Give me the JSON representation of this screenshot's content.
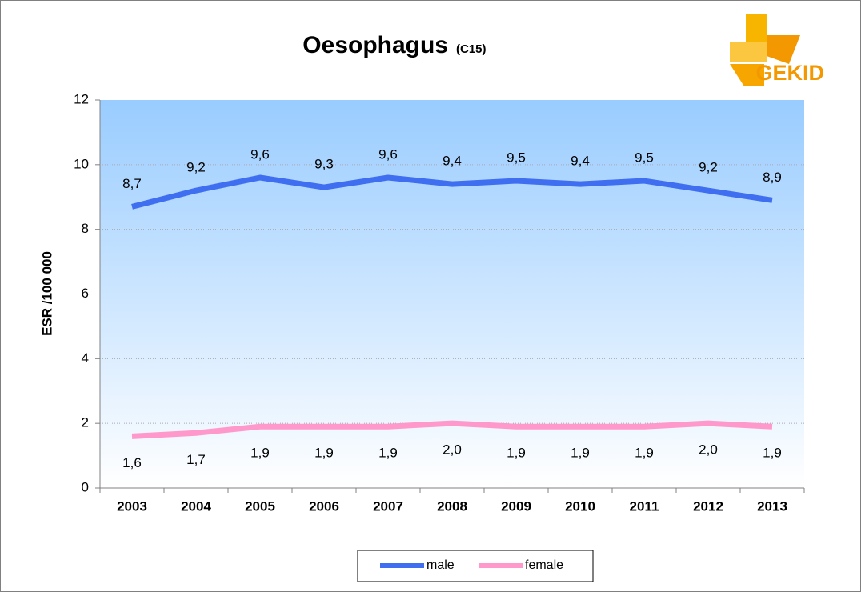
{
  "chart_data": {
    "type": "line",
    "title": "Oesophagus",
    "subtitle": "(C15)",
    "logo": "GEKID",
    "ylabel": "ESR /100 000",
    "categories": [
      "2003",
      "2004",
      "2005",
      "2006",
      "2007",
      "2008",
      "2009",
      "2010",
      "2011",
      "2012",
      "2013"
    ],
    "series": [
      {
        "name": "male",
        "color": "#3f6ef0",
        "values": [
          8.7,
          9.2,
          9.6,
          9.3,
          9.6,
          9.4,
          9.5,
          9.4,
          9.5,
          9.2,
          8.9
        ],
        "value_labels": [
          "8,7",
          "9,2",
          "9,6",
          "9,3",
          "9,6",
          "9,4",
          "9,5",
          "9,4",
          "9,5",
          "9,2",
          "8,9"
        ]
      },
      {
        "name": "female",
        "color": "#ff99cc",
        "values": [
          1.6,
          1.7,
          1.9,
          1.9,
          1.9,
          2.0,
          1.9,
          1.9,
          1.9,
          2.0,
          1.9
        ],
        "value_labels": [
          "1,6",
          "1,7",
          "1,9",
          "1,9",
          "1,9",
          "2,0",
          "1,9",
          "1,9",
          "1,9",
          "2,0",
          "1,9"
        ]
      }
    ],
    "ylim": [
      0,
      12
    ],
    "yticks": [
      0,
      2,
      4,
      6,
      8,
      10,
      12
    ],
    "grid": true,
    "legend": "bottom"
  }
}
